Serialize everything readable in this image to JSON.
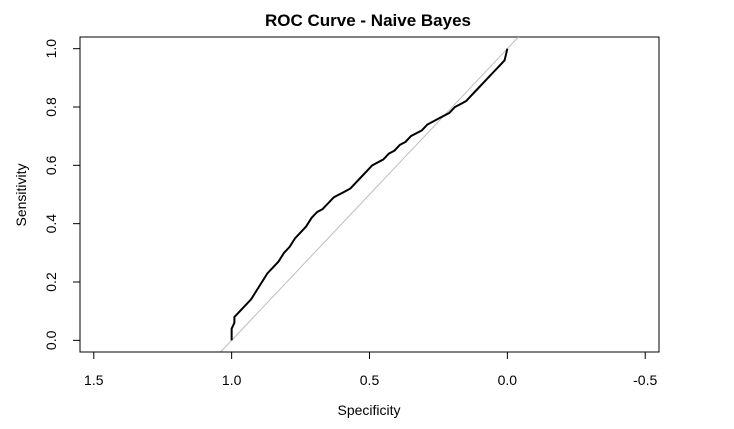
{
  "chart_data": {
    "type": "line",
    "title": "ROC Curve - Naive Bayes",
    "xlabel": "Specificity",
    "ylabel": "Sensitivity",
    "xlim": [
      1.55,
      -0.55
    ],
    "ylim": [
      -0.04,
      1.04
    ],
    "x_axis_reversed": true,
    "grid": false,
    "legend": "none",
    "x_ticks": [
      1.5,
      1.0,
      0.5,
      0.0,
      -0.5
    ],
    "x_tick_labels": [
      "1.5",
      "1.0",
      "0.5",
      "0.0",
      "-0.5"
    ],
    "y_ticks": [
      0.0,
      0.2,
      0.4,
      0.6,
      0.8,
      1.0
    ],
    "y_tick_labels": [
      "0.0",
      "0.2",
      "0.4",
      "0.6",
      "0.8",
      "1.0"
    ],
    "reference_line": {
      "x": [
        1.0,
        0.0
      ],
      "y": [
        0.0,
        1.0
      ],
      "color": "#bdbdbd"
    },
    "series": [
      {
        "color": "#000000",
        "x": [
          1.0,
          1.0,
          0.99,
          0.99,
          0.97,
          0.95,
          0.93,
          0.91,
          0.89,
          0.87,
          0.85,
          0.83,
          0.81,
          0.79,
          0.77,
          0.75,
          0.73,
          0.71,
          0.69,
          0.67,
          0.65,
          0.63,
          0.61,
          0.59,
          0.57,
          0.55,
          0.53,
          0.51,
          0.49,
          0.47,
          0.45,
          0.43,
          0.41,
          0.39,
          0.37,
          0.35,
          0.33,
          0.31,
          0.29,
          0.27,
          0.25,
          0.23,
          0.21,
          0.19,
          0.17,
          0.15,
          0.13,
          0.11,
          0.09,
          0.07,
          0.05,
          0.03,
          0.01,
          0.0
        ],
        "y": [
          0.0,
          0.04,
          0.06,
          0.08,
          0.1,
          0.12,
          0.14,
          0.17,
          0.2,
          0.23,
          0.25,
          0.27,
          0.3,
          0.32,
          0.35,
          0.37,
          0.39,
          0.42,
          0.44,
          0.45,
          0.47,
          0.49,
          0.5,
          0.51,
          0.52,
          0.54,
          0.56,
          0.58,
          0.6,
          0.61,
          0.62,
          0.64,
          0.65,
          0.67,
          0.68,
          0.7,
          0.71,
          0.72,
          0.74,
          0.75,
          0.76,
          0.77,
          0.78,
          0.8,
          0.81,
          0.82,
          0.84,
          0.86,
          0.88,
          0.9,
          0.92,
          0.94,
          0.96,
          1.0
        ]
      }
    ]
  }
}
